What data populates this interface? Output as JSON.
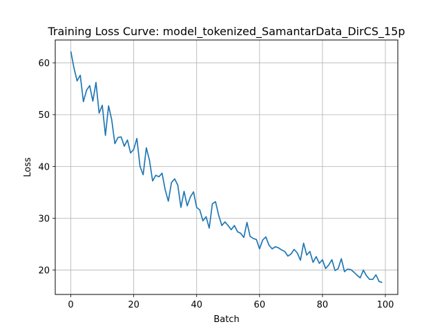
{
  "chart_data": {
    "type": "line",
    "title": "Training Loss Curve: model_tokenized_SamantarData_DirCS_15p",
    "xlabel": "Batch",
    "ylabel": "Loss",
    "xlim": [
      -4.95,
      103.95
    ],
    "ylim": [
      15.3,
      64.4
    ],
    "xticks": [
      0,
      20,
      40,
      60,
      80,
      100
    ],
    "yticks": [
      20,
      30,
      40,
      50,
      60
    ],
    "grid": true,
    "series": [
      {
        "color": "#1f77b4",
        "x": [
          0,
          1,
          2,
          3,
          4,
          5,
          6,
          7,
          8,
          9,
          10,
          11,
          12,
          13,
          14,
          15,
          16,
          17,
          18,
          19,
          20,
          21,
          22,
          23,
          24,
          25,
          26,
          27,
          28,
          29,
          30,
          31,
          32,
          33,
          34,
          35,
          36,
          37,
          38,
          39,
          40,
          41,
          42,
          43,
          44,
          45,
          46,
          47,
          48,
          49,
          50,
          51,
          52,
          53,
          54,
          55,
          56,
          57,
          58,
          59,
          60,
          61,
          62,
          63,
          64,
          65,
          66,
          67,
          68,
          69,
          70,
          71,
          72,
          73,
          74,
          75,
          76,
          77,
          78,
          79,
          80,
          81,
          82,
          83,
          84,
          85,
          86,
          87,
          88,
          89,
          90,
          91,
          92,
          93,
          94,
          95,
          96,
          97,
          98,
          99
        ],
        "values": [
          62.2,
          59.0,
          56.5,
          57.6,
          52.5,
          54.7,
          55.6,
          52.6,
          56.2,
          50.3,
          51.8,
          46.0,
          51.7,
          49.0,
          44.4,
          45.6,
          45.7,
          43.9,
          45.1,
          42.6,
          43.3,
          45.4,
          40.0,
          38.4,
          43.6,
          41.2,
          37.2,
          38.3,
          38.0,
          38.7,
          35.5,
          33.3,
          36.9,
          37.6,
          36.4,
          32.1,
          35.2,
          32.4,
          34.1,
          35.1,
          32.1,
          31.6,
          29.5,
          30.3,
          28.1,
          32.8,
          33.2,
          30.6,
          28.6,
          29.3,
          28.6,
          27.8,
          28.6,
          27.4,
          27.1,
          26.3,
          29.2,
          26.5,
          26.1,
          25.9,
          24.1,
          25.8,
          26.4,
          24.8,
          24.1,
          24.5,
          24.3,
          23.9,
          23.6,
          22.7,
          23.1,
          24.0,
          23.3,
          21.9,
          25.2,
          22.9,
          23.6,
          21.5,
          22.6,
          21.3,
          22.0,
          20.3,
          21.0,
          22.0,
          19.9,
          20.3,
          22.2,
          19.7,
          20.2,
          20.1,
          19.6,
          19.0,
          18.5,
          20.0,
          18.9,
          18.2,
          18.2,
          19.1,
          17.8,
          17.6
        ]
      }
    ]
  }
}
